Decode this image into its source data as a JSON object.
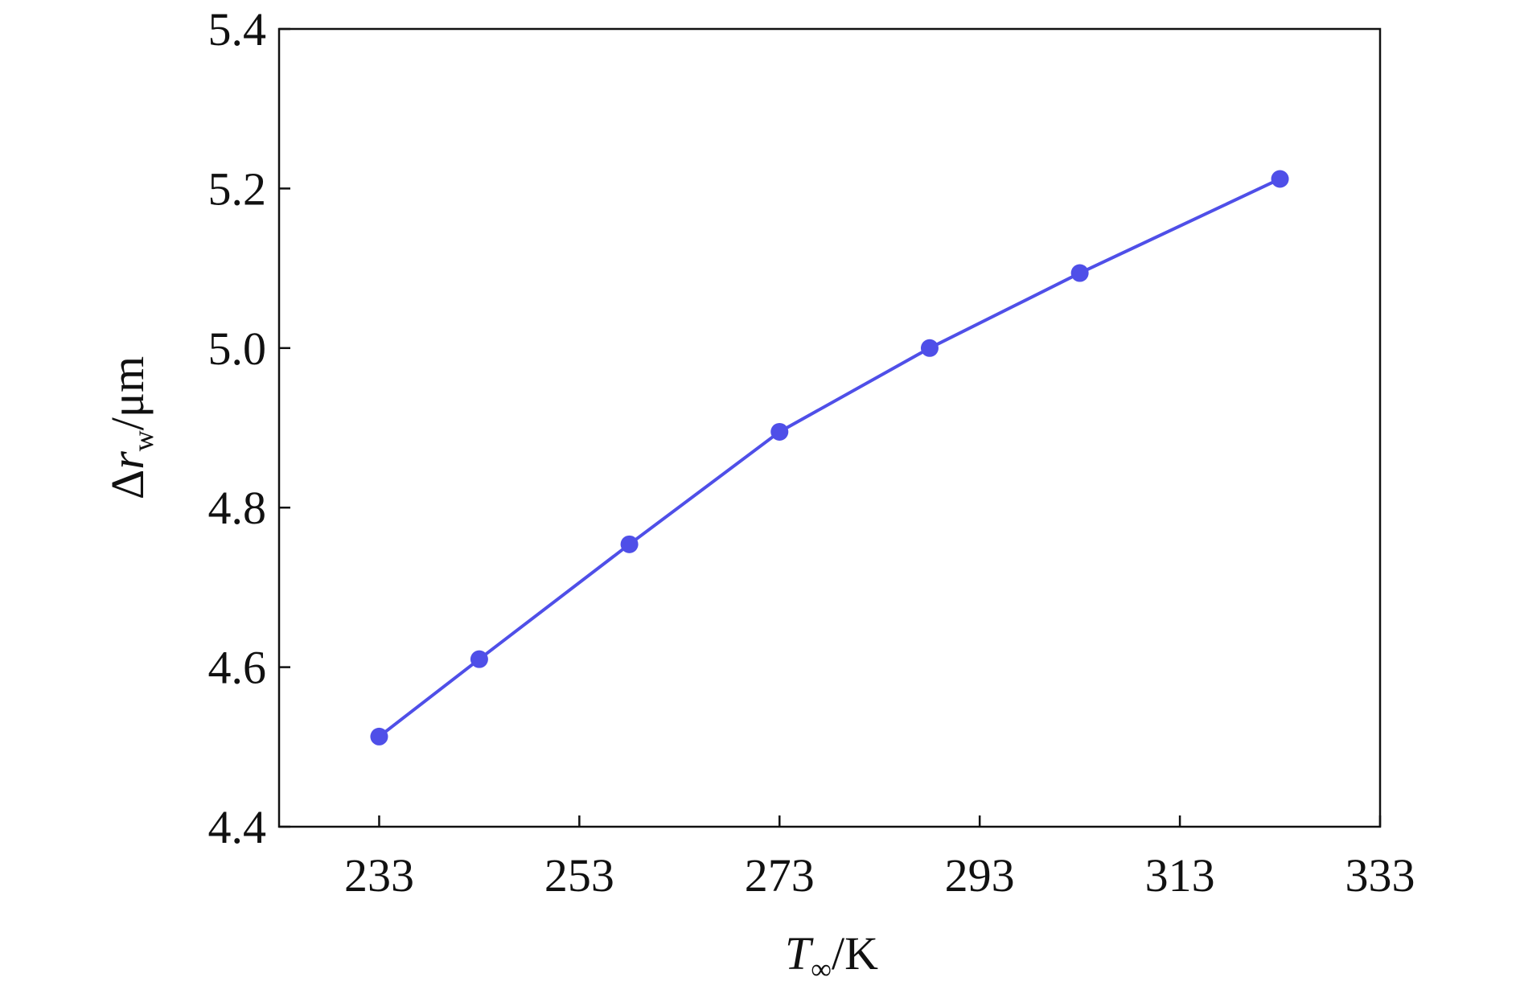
{
  "chart_data": {
    "type": "line",
    "xlabel": [
      "T",
      "∞",
      "/K"
    ],
    "ylabel": [
      "Δ",
      "r",
      "w",
      "/μm"
    ],
    "x": [
      233,
      243,
      258,
      273,
      288,
      303,
      323
    ],
    "series": [
      {
        "color": "#4f4fe8",
        "values": [
          4.513,
          4.61,
          4.754,
          4.895,
          5.0,
          5.094,
          5.212
        ]
      }
    ],
    "xlim": [
      223,
      333
    ],
    "xticks": [
      233,
      253,
      273,
      293,
      313,
      333
    ],
    "ylim": [
      4.4,
      5.4
    ],
    "yticks": [
      4.4,
      4.6,
      4.8,
      {
        "value": 5,
        "label": "5.0"
      },
      5.2,
      5.4
    ],
    "grid": false
  }
}
